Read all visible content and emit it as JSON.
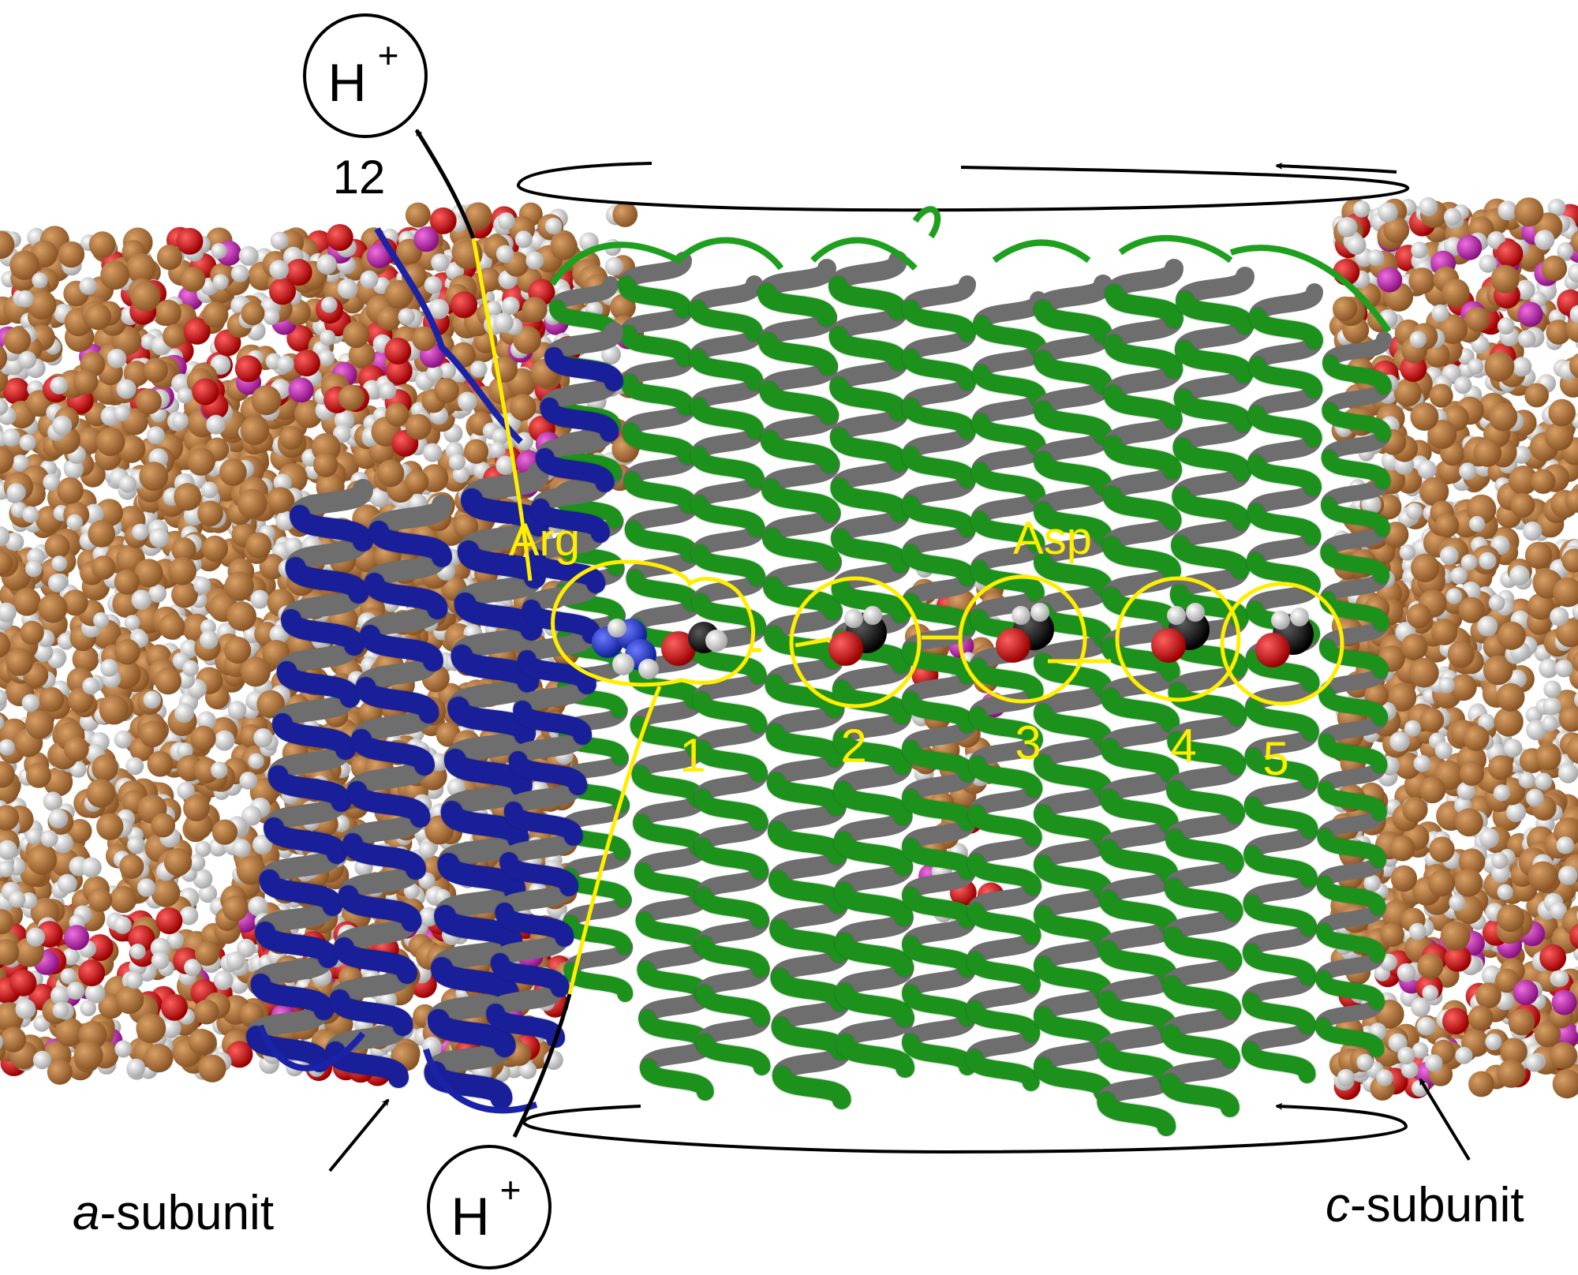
{
  "labels": {
    "proton": "H",
    "proton_charge": "+",
    "top_number": "12",
    "arg": "Arg",
    "asp": "Asp",
    "a_subunit_italic": "a",
    "a_subunit_rest": "-subunit",
    "c_subunit_italic": "c",
    "c_subunit_rest": "-subunit"
  },
  "sites": [
    "1",
    "2",
    "3",
    "4",
    "5"
  ],
  "colors": {
    "lipid_carbon": "#a8703a",
    "lipid_hydrogen": "#d9d9d9",
    "lipid_oxygen": "#d01010",
    "lipid_phosphorus": "#c030b0",
    "a_subunit_helix": "#1a22a8",
    "c_subunit_helix": "#1ea01e",
    "helix_inner": "#6e6e6e",
    "highlight": "#ffee00",
    "arrow": "#000000"
  }
}
